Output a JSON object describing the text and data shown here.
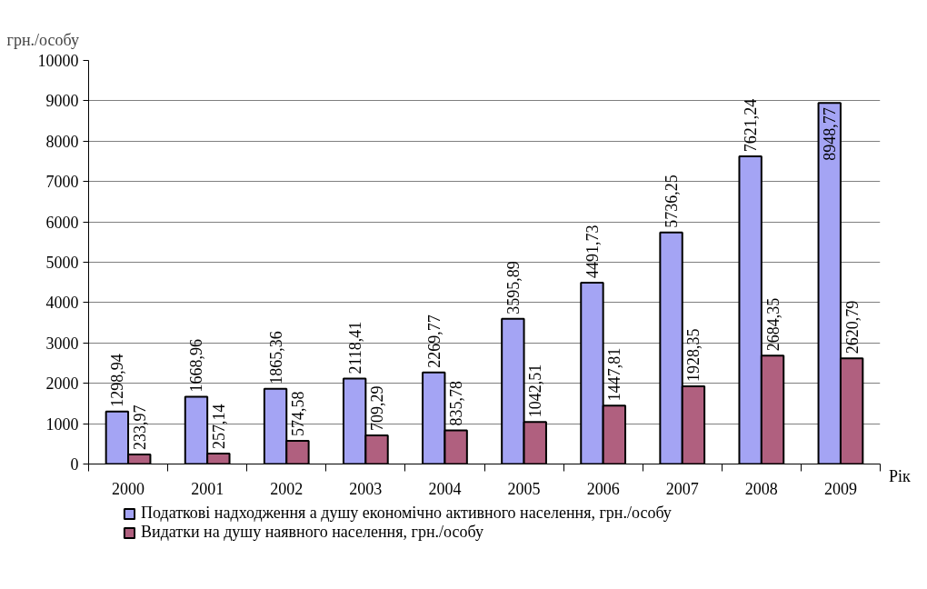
{
  "chart_data": {
    "type": "bar",
    "xlabel": "Рік",
    "ylabel": "грн./особу",
    "categories": [
      "2000",
      "2001",
      "2002",
      "2003",
      "2004",
      "2005",
      "2006",
      "2007",
      "2008",
      "2009"
    ],
    "series": [
      {
        "name": "Податкові надходження а душу економічно активного населення, грн./особу",
        "color": "#a4a4f4",
        "values": [
          1298.94,
          1668.96,
          1865.36,
          2118.41,
          2269.77,
          3595.89,
          4491.73,
          5736.25,
          7621.24,
          8948.77
        ],
        "value_labels": [
          "1298,94",
          "1668,96",
          "1865,36",
          "2118,41",
          "2269,77",
          "3595,89",
          "4491,73",
          "5736,25",
          "7621,24",
          "8948,77"
        ]
      },
      {
        "name": "Видатки на душу наявного населення, грн./особу",
        "color": "#b0607f",
        "values": [
          233.97,
          257.14,
          574.58,
          709.29,
          835.78,
          1042.51,
          1447.81,
          1928.35,
          2684.35,
          2620.79
        ],
        "value_labels": [
          "233,97",
          "257,14",
          "574,58",
          "709,29",
          "835,78",
          "1042,51",
          "1447,81",
          "1928,35",
          "2684,35",
          "2620,79"
        ]
      }
    ],
    "ylim": [
      0,
      10000
    ],
    "yticks": [
      0,
      1000,
      2000,
      3000,
      4000,
      5000,
      6000,
      7000,
      8000,
      9000,
      10000
    ],
    "grid": "y",
    "legend": "bottom"
  }
}
